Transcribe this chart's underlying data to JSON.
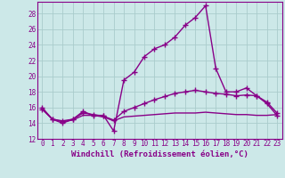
{
  "curve1_x": [
    0,
    1,
    2,
    3,
    4,
    5,
    6,
    7,
    8,
    9,
    10,
    11,
    12,
    13,
    14,
    15,
    16,
    17,
    18,
    19,
    20,
    21,
    22,
    23
  ],
  "curve1_y": [
    16,
    14.5,
    14,
    14.5,
    15.5,
    15,
    15,
    13,
    19.5,
    20.5,
    22.5,
    23.5,
    24,
    25,
    26.5,
    27.5,
    29,
    21,
    18,
    18,
    18.5,
    17.5,
    16.5,
    15
  ],
  "curve2_x": [
    0,
    1,
    2,
    3,
    4,
    5,
    6,
    7,
    8,
    9,
    10,
    11,
    12,
    13,
    14,
    15,
    16,
    17,
    18,
    19,
    20,
    21,
    22,
    23
  ],
  "curve2_y": [
    15.8,
    14.5,
    14.3,
    14.5,
    15.3,
    15.1,
    14.9,
    14.4,
    15.5,
    16.0,
    16.5,
    17.0,
    17.4,
    17.8,
    18.0,
    18.2,
    18.0,
    17.8,
    17.7,
    17.5,
    17.6,
    17.5,
    16.7,
    15.3
  ],
  "curve3_x": [
    0,
    1,
    2,
    3,
    4,
    5,
    6,
    7,
    8,
    9,
    10,
    11,
    12,
    13,
    14,
    15,
    16,
    17,
    18,
    19,
    20,
    21,
    22,
    23
  ],
  "curve3_y": [
    15.8,
    14.5,
    14.2,
    14.4,
    15.0,
    15.0,
    14.8,
    14.3,
    14.8,
    14.9,
    15.0,
    15.1,
    15.2,
    15.3,
    15.3,
    15.3,
    15.4,
    15.3,
    15.2,
    15.1,
    15.1,
    15.0,
    15.0,
    15.1
  ],
  "line_color": "#880088",
  "bg_color": "#cce8e8",
  "grid_color": "#aacccc",
  "xlabel": "Windchill (Refroidissement éolien,°C)",
  "xlim_min": -0.5,
  "xlim_max": 23.5,
  "ylim_min": 12,
  "ylim_max": 29.5,
  "yticks": [
    12,
    14,
    16,
    18,
    20,
    22,
    24,
    26,
    28
  ],
  "xticks": [
    0,
    1,
    2,
    3,
    4,
    5,
    6,
    7,
    8,
    9,
    10,
    11,
    12,
    13,
    14,
    15,
    16,
    17,
    18,
    19,
    20,
    21,
    22,
    23
  ],
  "markersize": 4,
  "linewidth": 1.0,
  "xlabel_fontsize": 6.5,
  "tick_fontsize": 5.5
}
